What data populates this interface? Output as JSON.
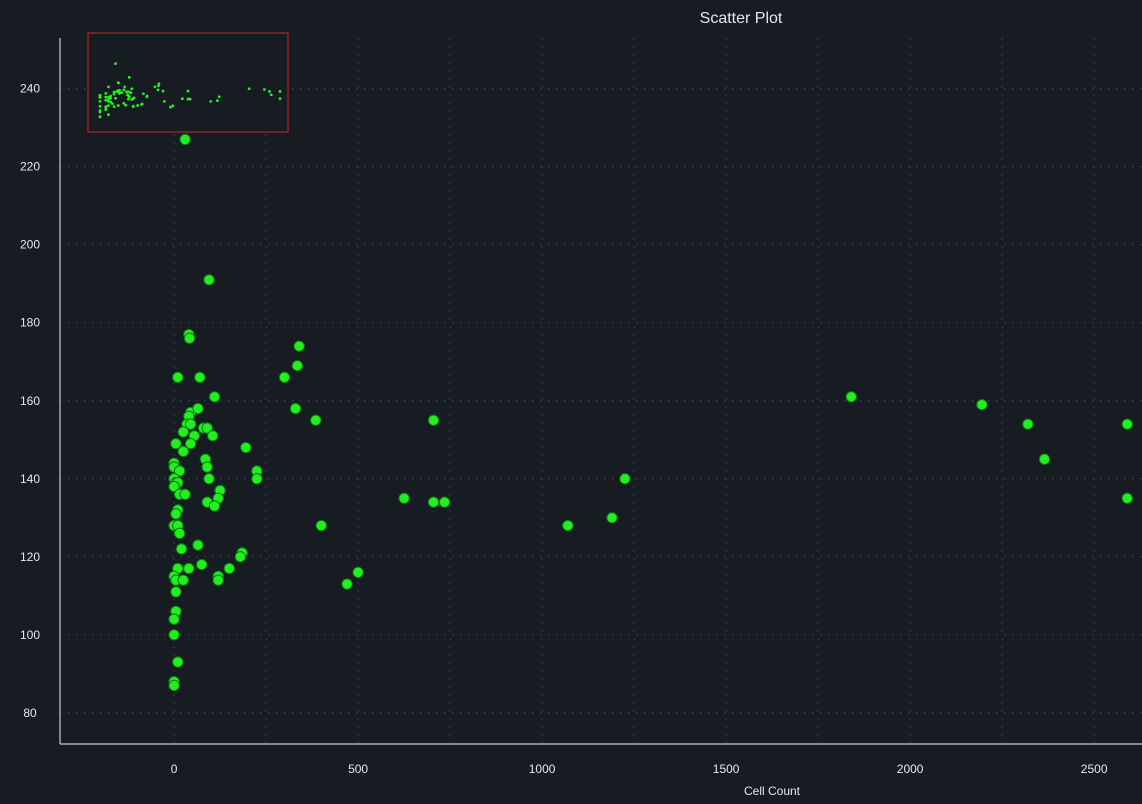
{
  "colors": {
    "background": "#171b22",
    "point": "#22ee22",
    "point_stroke": "#0a7a0a",
    "grid": "#3a414c",
    "axis": "#c8ccd2",
    "text": "#e6e8ec",
    "minimap_border": "#a82828"
  },
  "chart_data": {
    "type": "scatter",
    "title": "Scatter Plot",
    "xlabel": "Cell Count",
    "ylabel": "",
    "xlim": [
      -310,
      2630
    ],
    "ylim": [
      72,
      253
    ],
    "xticks": [
      0,
      500,
      1000,
      1500,
      2000,
      2500
    ],
    "yticks": [
      80,
      100,
      120,
      140,
      160,
      180,
      200,
      220,
      240
    ],
    "grid": true,
    "legend": "none",
    "minimap": true,
    "series": [
      {
        "points": [
          [
            30,
            227
          ],
          [
            95,
            191
          ],
          [
            40,
            177
          ],
          [
            42,
            176
          ],
          [
            10,
            166
          ],
          [
            70,
            166
          ],
          [
            300,
            166
          ],
          [
            340,
            174
          ],
          [
            335,
            169
          ],
          [
            110,
            161
          ],
          [
            45,
            157
          ],
          [
            40,
            156
          ],
          [
            65,
            158
          ],
          [
            330,
            158
          ],
          [
            385,
            155
          ],
          [
            705,
            155
          ],
          [
            35,
            154
          ],
          [
            45,
            154
          ],
          [
            80,
            153
          ],
          [
            90,
            153
          ],
          [
            25,
            152
          ],
          [
            55,
            151
          ],
          [
            105,
            151
          ],
          [
            5,
            149
          ],
          [
            45,
            149
          ],
          [
            195,
            148
          ],
          [
            25,
            147
          ],
          [
            85,
            145
          ],
          [
            0,
            144
          ],
          [
            0,
            143
          ],
          [
            15,
            142
          ],
          [
            90,
            143
          ],
          [
            225,
            142
          ],
          [
            95,
            140
          ],
          [
            225,
            140
          ],
          [
            0,
            140
          ],
          [
            5,
            139
          ],
          [
            10,
            139
          ],
          [
            0,
            138
          ],
          [
            15,
            136
          ],
          [
            30,
            136
          ],
          [
            125,
            137
          ],
          [
            120,
            135
          ],
          [
            90,
            134
          ],
          [
            110,
            133
          ],
          [
            625,
            135
          ],
          [
            705,
            134
          ],
          [
            735,
            134
          ],
          [
            1225,
            140
          ],
          [
            1190,
            130
          ],
          [
            1070,
            128
          ],
          [
            400,
            128
          ],
          [
            10,
            132
          ],
          [
            5,
            131
          ],
          [
            0,
            128
          ],
          [
            10,
            128
          ],
          [
            15,
            126
          ],
          [
            20,
            122
          ],
          [
            65,
            123
          ],
          [
            185,
            121
          ],
          [
            180,
            120
          ],
          [
            75,
            118
          ],
          [
            150,
            117
          ],
          [
            10,
            117
          ],
          [
            40,
            117
          ],
          [
            0,
            115
          ],
          [
            5,
            114
          ],
          [
            25,
            114
          ],
          [
            120,
            115
          ],
          [
            120,
            114
          ],
          [
            500,
            116
          ],
          [
            470,
            113
          ],
          [
            5,
            111
          ],
          [
            5,
            106
          ],
          [
            0,
            104
          ],
          [
            0,
            100
          ],
          [
            10,
            93
          ],
          [
            0,
            88
          ],
          [
            0,
            87
          ],
          [
            1840,
            161
          ],
          [
            2195,
            159
          ],
          [
            2320,
            154
          ],
          [
            2365,
            145
          ],
          [
            2590,
            154
          ],
          [
            2590,
            135
          ]
        ]
      }
    ]
  }
}
